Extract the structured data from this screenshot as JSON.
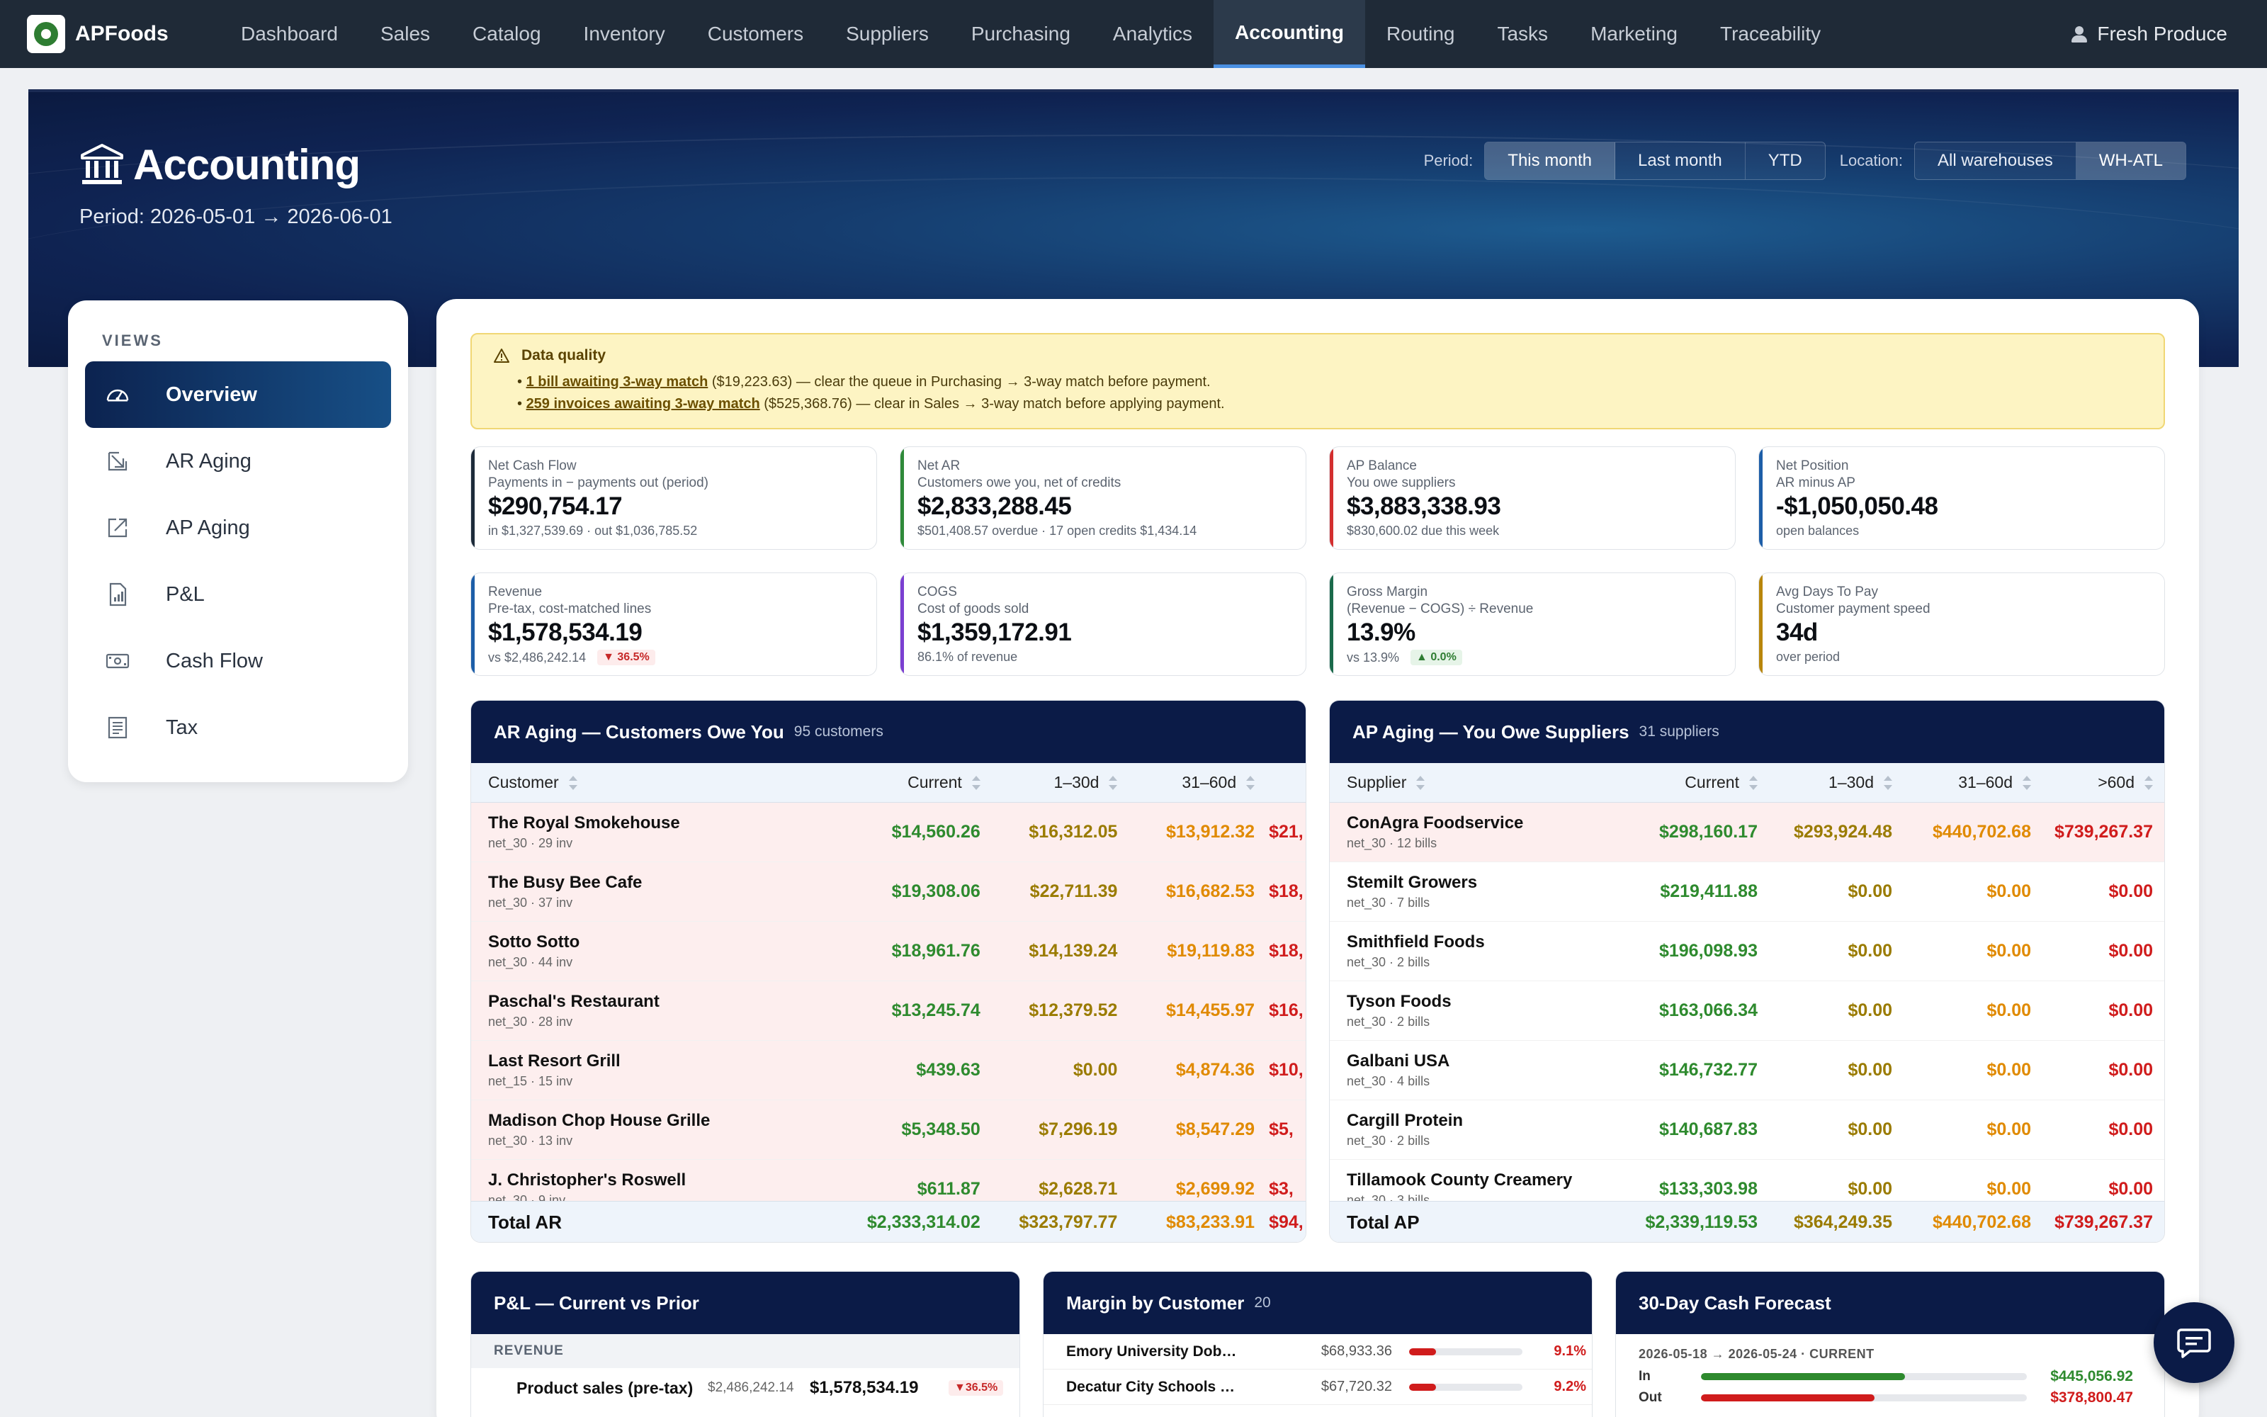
{
  "nav": {
    "brand": "APFoods",
    "items": [
      "Dashboard",
      "Sales",
      "Catalog",
      "Inventory",
      "Customers",
      "Suppliers",
      "Purchasing",
      "Analytics",
      "Accounting",
      "Routing",
      "Tasks",
      "Marketing",
      "Traceability"
    ],
    "active": "Accounting",
    "user": "Fresh Produce"
  },
  "hero": {
    "title": "Accounting",
    "period": "Period: 2026-05-01 → 2026-06-01",
    "period_label": "Period:",
    "period_options": [
      "This month",
      "Last month",
      "YTD"
    ],
    "period_selected": "This month",
    "location_label": "Location:",
    "location_options": [
      "All warehouses",
      "WH-ATL"
    ],
    "location_selected": "WH-ATL"
  },
  "sidebar": {
    "heading": "VIEWS",
    "items": [
      {
        "label": "Overview",
        "icon": "gauge-icon",
        "active": true
      },
      {
        "label": "AR Aging",
        "icon": "arrow-in-icon",
        "active": false
      },
      {
        "label": "AP Aging",
        "icon": "arrow-out-icon",
        "active": false
      },
      {
        "label": "P&L",
        "icon": "report-icon",
        "active": false
      },
      {
        "label": "Cash Flow",
        "icon": "cash-icon",
        "active": false
      },
      {
        "label": "Tax",
        "icon": "ledger-icon",
        "active": false
      }
    ]
  },
  "data_quality": {
    "title": "Data quality",
    "items": [
      {
        "link": "1 bill awaiting 3-way match",
        "text": " ($19,223.63) — clear the queue in Purchasing → 3-way match before payment."
      },
      {
        "link": "259 invoices awaiting 3-way match",
        "text": " ($525,368.76) — clear in Sales → 3-way match before applying payment."
      }
    ]
  },
  "kpis": [
    {
      "label": "Net Cash Flow",
      "sub": "Payments in − payments out (period)",
      "value": "$290,754.17",
      "foot": "in $1,327,539.69 · out $1,036,785.52",
      "color": "navy"
    },
    {
      "label": "Net AR",
      "sub": "Customers owe you, net of credits",
      "value": "$2,833,288.45",
      "foot": "$501,408.57 overdue · 17 open credits $1,434.14",
      "color": "green"
    },
    {
      "label": "AP Balance",
      "sub": "You owe suppliers",
      "value": "$3,883,338.93",
      "foot": "$830,600.02 due this week",
      "color": "red"
    },
    {
      "label": "Net Position",
      "sub": "AR minus AP",
      "value": "-$1,050,050.48",
      "foot": "open balances",
      "color": "blue"
    },
    {
      "label": "Revenue",
      "sub": "Pre-tax, cost-matched lines",
      "value": "$1,578,534.19",
      "foot": "vs $2,486,242.14",
      "delta": "▼ 36.5%",
      "delta_dir": "down",
      "color": "blue"
    },
    {
      "label": "COGS",
      "sub": "Cost of goods sold",
      "value": "$1,359,172.91",
      "foot": "86.1% of revenue",
      "color": "purple"
    },
    {
      "label": "Gross Margin",
      "sub": "(Revenue − COGS) ÷ Revenue",
      "value": "13.9%",
      "foot": "vs 13.9%",
      "delta": "▲ 0.0%",
      "delta_dir": "up",
      "color": "teal"
    },
    {
      "label": "Avg Days To Pay",
      "sub": "Customer payment speed",
      "value": "34d",
      "foot": "over period",
      "color": "gold"
    }
  ],
  "ar_aging": {
    "title": "AR Aging — Customers Owe You",
    "count": "95 customers",
    "columns": [
      "Customer",
      "Current",
      "1–30d",
      "31–60d"
    ],
    "rows": [
      {
        "name": "The Royal Smokehouse",
        "meta": "net_30 · 29 inv",
        "current": "$14,560.26",
        "d30": "$16,312.05",
        "d60": "$13,912.32",
        "d90": "$21,"
      },
      {
        "name": "The Busy Bee Cafe",
        "meta": "net_30 · 37 inv",
        "current": "$19,308.06",
        "d30": "$22,711.39",
        "d60": "$16,682.53",
        "d90": "$18,"
      },
      {
        "name": "Sotto Sotto",
        "meta": "net_30 · 44 inv",
        "current": "$18,961.76",
        "d30": "$14,139.24",
        "d60": "$19,119.83",
        "d90": "$18,"
      },
      {
        "name": "Paschal's Restaurant",
        "meta": "net_30 · 28 inv",
        "current": "$13,245.74",
        "d30": "$12,379.52",
        "d60": "$14,455.97",
        "d90": "$16,"
      },
      {
        "name": "Last Resort Grill",
        "meta": "net_15 · 15 inv",
        "current": "$439.63",
        "d30": "$0.00",
        "d60": "$4,874.36",
        "d90": "$10,"
      },
      {
        "name": "Madison Chop House Grille",
        "meta": "net_30 · 13 inv",
        "current": "$5,348.50",
        "d30": "$7,296.19",
        "d60": "$8,547.29",
        "d90": "$5,"
      },
      {
        "name": "J. Christopher's Roswell",
        "meta": "net_30 · 9 inv",
        "current": "$611.87",
        "d30": "$2,628.71",
        "d60": "$2,699.92",
        "d90": "$3,"
      }
    ],
    "total": {
      "label": "Total AR",
      "current": "$2,333,314.02",
      "d30": "$323,797.77",
      "d60": "$83,233.91",
      "d90": "$94,"
    }
  },
  "ap_aging": {
    "title": "AP Aging — You Owe Suppliers",
    "count": "31 suppliers",
    "columns": [
      "Supplier",
      "Current",
      "1–30d",
      "31–60d",
      ">60d"
    ],
    "rows": [
      {
        "name": "ConAgra Foodservice",
        "meta": "net_30 · 12 bills",
        "current": "$298,160.17",
        "d30": "$293,924.48",
        "d60": "$440,702.68",
        "d90": "$739,267.37"
      },
      {
        "name": "Stemilt Growers",
        "meta": "net_30 · 7 bills",
        "current": "$219,411.88",
        "d30": "$0.00",
        "d60": "$0.00",
        "d90": "$0.00"
      },
      {
        "name": "Smithfield Foods",
        "meta": "net_30 · 2 bills",
        "current": "$196,098.93",
        "d30": "$0.00",
        "d60": "$0.00",
        "d90": "$0.00"
      },
      {
        "name": "Tyson Foods",
        "meta": "net_30 · 2 bills",
        "current": "$163,066.34",
        "d30": "$0.00",
        "d60": "$0.00",
        "d90": "$0.00"
      },
      {
        "name": "Galbani USA",
        "meta": "net_30 · 4 bills",
        "current": "$146,732.77",
        "d30": "$0.00",
        "d60": "$0.00",
        "d90": "$0.00"
      },
      {
        "name": "Cargill Protein",
        "meta": "net_30 · 2 bills",
        "current": "$140,687.83",
        "d30": "$0.00",
        "d60": "$0.00",
        "d90": "$0.00"
      },
      {
        "name": "Tillamook County Creamery",
        "meta": "net_30 · 3 bills",
        "current": "$133,303.98",
        "d30": "$0.00",
        "d60": "$0.00",
        "d90": "$0.00"
      }
    ],
    "total": {
      "label": "Total AP",
      "current": "$2,339,119.53",
      "d30": "$364,249.35",
      "d60": "$440,702.68",
      "d90": "$739,267.37"
    }
  },
  "pl": {
    "title": "P&L — Current vs Prior",
    "section": "REVENUE",
    "row": {
      "label": "Product sales (pre-tax)",
      "prior": "$2,486,242.14",
      "current": "$1,578,534.19",
      "delta": "▼36.5%"
    }
  },
  "margin": {
    "title": "Margin by Customer",
    "count": "20",
    "rows": [
      {
        "name": "Emory University Dob…",
        "amount": "$68,933.36",
        "pct": "9.1%",
        "pct_value": 9.1
      },
      {
        "name": "Decatur City Schools …",
        "amount": "$67,720.32",
        "pct": "9.2%",
        "pct_value": 9.2
      }
    ]
  },
  "forecast": {
    "title": "30-Day Cash Forecast",
    "range": "2026-05-18 → 2026-05-24 · CURRENT",
    "in_label": "In",
    "in_value": "$445,056.92",
    "in_amount": 445056.92,
    "out_label": "Out",
    "out_value": "$378,800.47",
    "out_amount": 378800.47
  },
  "colors": {
    "navy": "#0b1b47",
    "green": "#2e8a2e",
    "red": "#d01c1c",
    "gold": "#9a7b00",
    "orange": "#e08a00"
  }
}
